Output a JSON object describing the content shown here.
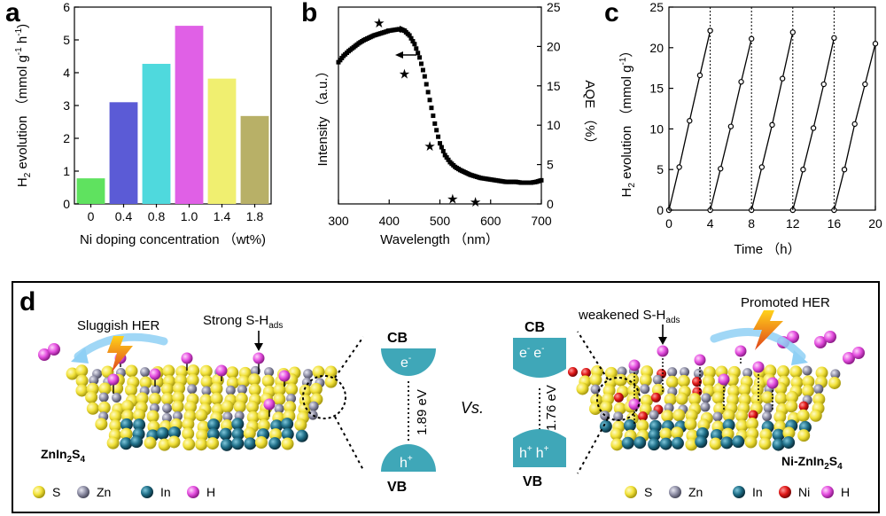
{
  "chart_data": [
    {
      "panel": "a",
      "type": "bar",
      "categories": [
        "0",
        "0.4",
        "0.8",
        "1.0",
        "1.4",
        "1.8"
      ],
      "values": [
        0.78,
        3.1,
        4.27,
        5.43,
        3.82,
        2.68
      ],
      "bar_colors": [
        "#5fe25f",
        "#5b5bd6",
        "#4fd9dd",
        "#e060e6",
        "#f0ef70",
        "#b8b067"
      ],
      "xlabel": "Ni doping concentration （wt%)",
      "ylabel": "H2 evolution （mmol g-1 h-1)",
      "ylim": [
        0,
        6
      ],
      "yticks": [
        "0",
        "1",
        "2",
        "3",
        "4",
        "5",
        "6"
      ]
    },
    {
      "panel": "b",
      "type": "line",
      "xlabel": "Wavelength （nm）",
      "ylabel_left": "Intensity （a.u.）",
      "ylabel_right": "AQE （%）",
      "xlim": [
        300,
        700
      ],
      "xticks": [
        "300",
        "400",
        "500",
        "600",
        "700"
      ],
      "ylim_right": [
        0,
        25
      ],
      "yticks_right": [
        "0",
        "5",
        "10",
        "15",
        "20",
        "25"
      ],
      "series": [
        {
          "kind": "absorbance",
          "x": [
            300,
            310,
            320,
            330,
            340,
            350,
            360,
            370,
            380,
            390,
            400,
            410,
            420,
            430,
            440,
            450,
            460,
            470,
            480,
            490,
            500,
            510,
            520,
            530,
            540,
            550,
            560,
            570,
            580,
            590,
            600,
            610,
            620,
            630,
            640,
            650,
            660,
            670,
            680,
            690,
            700
          ],
          "y": [
            18.0,
            18.8,
            19.4,
            19.9,
            20.4,
            20.8,
            21.1,
            21.4,
            21.6,
            21.8,
            22.0,
            22.1,
            22.2,
            22.0,
            21.4,
            20.3,
            18.6,
            16.2,
            13.2,
            10.2,
            7.7,
            6.2,
            5.3,
            4.7,
            4.3,
            4.0,
            3.7,
            3.5,
            3.3,
            3.2,
            3.1,
            3.0,
            2.9,
            2.8,
            2.8,
            2.8,
            2.7,
            2.7,
            2.7,
            2.8,
            3.0
          ]
        },
        {
          "kind": "AQE",
          "x": [
            380,
            430,
            480,
            525,
            570
          ],
          "y": [
            23,
            16.5,
            7.3,
            0.6,
            0.2
          ]
        }
      ]
    },
    {
      "panel": "c",
      "type": "line",
      "xlabel": "Time （h）",
      "ylabel": "H2 evolution （mmol g-1）",
      "xlim": [
        0,
        20
      ],
      "ylim": [
        0,
        25
      ],
      "xticks": [
        "0",
        "4",
        "8",
        "12",
        "16",
        "20"
      ],
      "yticks": [
        "0",
        "5",
        "10",
        "15",
        "20",
        "25"
      ],
      "cycles": [
        {
          "x": [
            0,
            1,
            2,
            3,
            4
          ],
          "y": [
            0,
            5.3,
            11.0,
            16.6,
            22.1
          ]
        },
        {
          "x": [
            4,
            5,
            6,
            7,
            8
          ],
          "y": [
            0,
            5.1,
            10.3,
            15.8,
            21.1
          ]
        },
        {
          "x": [
            8,
            9,
            10,
            11,
            12
          ],
          "y": [
            0,
            5.3,
            10.5,
            16.2,
            21.9
          ]
        },
        {
          "x": [
            12,
            13,
            14,
            15,
            16
          ],
          "y": [
            0,
            5.0,
            10.1,
            15.5,
            21.2
          ]
        },
        {
          "x": [
            16,
            17,
            18,
            19,
            20
          ],
          "y": [
            0,
            5.0,
            10.6,
            15.5,
            20.5
          ]
        }
      ]
    }
  ],
  "letters": {
    "a": "a",
    "b": "b",
    "c": "c",
    "d": "d"
  },
  "panel_d": {
    "left_material": "ZnIn2S4",
    "right_material": "Ni-ZnIn2S4",
    "sluggish": "Sluggish HER",
    "promoted": "Promoted HER",
    "strong": "Strong S-H",
    "weakened": "weakened S-H",
    "ads": "ads",
    "vs": "Vs.",
    "cb": "CB",
    "vb": "VB",
    "gap_left": "1.89 eV",
    "gap_right": "1.76 eV",
    "electron": "e",
    "hole": "h",
    "legend_left": [
      {
        "label": "S",
        "color": "#f2e23a"
      },
      {
        "label": "Zn",
        "color": "#8f8fa6"
      },
      {
        "label": "In",
        "color": "#1f6f88"
      },
      {
        "label": "H",
        "color": "#e54fe0"
      }
    ],
    "legend_right": [
      {
        "label": "S",
        "color": "#f2e23a"
      },
      {
        "label": "Zn",
        "color": "#8f8fa6"
      },
      {
        "label": "In",
        "color": "#1f6f88"
      },
      {
        "label": "Ni",
        "color": "#e01818"
      },
      {
        "label": "H",
        "color": "#e54fe0"
      }
    ]
  }
}
